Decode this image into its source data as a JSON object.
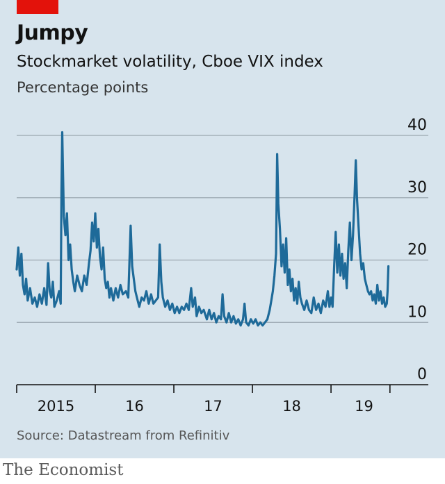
{
  "title": "Jumpy",
  "subtitle": "Stockmarket volatility, Cboe VIX index",
  "units": "Percentage points",
  "source": "Source: Datastream from Refinitiv",
  "brand": "The Economist",
  "colors": {
    "line": "#1e6a99",
    "accent_tag": "#e3120b",
    "background": "#d7e4ed"
  },
  "chart_data": {
    "type": "line",
    "ylim": [
      0,
      40
    ],
    "yticks": [
      0,
      10,
      20,
      30,
      40
    ],
    "xlim": [
      2014.58,
      2019.42
    ],
    "x_ticks": [
      2014.58,
      2015.58,
      2016.58,
      2017.58,
      2018.58,
      2019.33
    ],
    "x_labels": [
      {
        "x": 2015.08,
        "label": "2015"
      },
      {
        "x": 2016.08,
        "label": "16"
      },
      {
        "x": 2017.08,
        "label": "17"
      },
      {
        "x": 2018.08,
        "label": "18"
      },
      {
        "x": 2019.0,
        "label": "19"
      }
    ],
    "grid": true,
    "series": [
      {
        "values": [
          [
            2014.58,
            18.5
          ],
          [
            2014.6,
            22.0
          ],
          [
            2014.62,
            17.5
          ],
          [
            2014.64,
            21.0
          ],
          [
            2014.66,
            16.0
          ],
          [
            2014.68,
            14.5
          ],
          [
            2014.7,
            17.0
          ],
          [
            2014.72,
            13.5
          ],
          [
            2014.75,
            15.5
          ],
          [
            2014.78,
            13.0
          ],
          [
            2014.81,
            14.0
          ],
          [
            2014.84,
            12.5
          ],
          [
            2014.87,
            14.5
          ],
          [
            2014.9,
            13.0
          ],
          [
            2014.93,
            15.5
          ],
          [
            2014.96,
            12.8
          ],
          [
            2014.98,
            19.5
          ],
          [
            2015.0,
            15.0
          ],
          [
            2015.02,
            14.0
          ],
          [
            2015.04,
            16.5
          ],
          [
            2015.06,
            12.5
          ],
          [
            2015.09,
            13.5
          ],
          [
            2015.12,
            15.0
          ],
          [
            2015.14,
            13.0
          ],
          [
            2015.15,
            31.0
          ],
          [
            2015.16,
            40.5
          ],
          [
            2015.18,
            27.0
          ],
          [
            2015.2,
            24.0
          ],
          [
            2015.22,
            27.5
          ],
          [
            2015.24,
            20.0
          ],
          [
            2015.26,
            22.5
          ],
          [
            2015.28,
            18.5
          ],
          [
            2015.3,
            16.5
          ],
          [
            2015.32,
            15.0
          ],
          [
            2015.35,
            17.5
          ],
          [
            2015.38,
            16.0
          ],
          [
            2015.41,
            15.0
          ],
          [
            2015.44,
            17.5
          ],
          [
            2015.47,
            16.0
          ],
          [
            2015.5,
            19.5
          ],
          [
            2015.52,
            21.5
          ],
          [
            2015.54,
            26.0
          ],
          [
            2015.56,
            23.0
          ],
          [
            2015.58,
            27.5
          ],
          [
            2015.6,
            22.0
          ],
          [
            2015.62,
            25.0
          ],
          [
            2015.64,
            20.5
          ],
          [
            2015.66,
            18.5
          ],
          [
            2015.68,
            22.0
          ],
          [
            2015.7,
            17.0
          ],
          [
            2015.72,
            15.5
          ],
          [
            2015.74,
            16.5
          ],
          [
            2015.76,
            14.0
          ],
          [
            2015.78,
            15.5
          ],
          [
            2015.81,
            13.5
          ],
          [
            2015.84,
            15.5
          ],
          [
            2015.87,
            14.0
          ],
          [
            2015.9,
            16.0
          ],
          [
            2015.93,
            14.5
          ],
          [
            2015.97,
            15.0
          ],
          [
            2016.0,
            14.0
          ],
          [
            2016.03,
            25.5
          ],
          [
            2016.05,
            19.0
          ],
          [
            2016.07,
            17.0
          ],
          [
            2016.09,
            15.0
          ],
          [
            2016.11,
            14.0
          ],
          [
            2016.14,
            12.5
          ],
          [
            2016.17,
            14.0
          ],
          [
            2016.2,
            13.5
          ],
          [
            2016.23,
            15.0
          ],
          [
            2016.26,
            13.0
          ],
          [
            2016.29,
            14.5
          ],
          [
            2016.32,
            13.0
          ],
          [
            2016.35,
            13.5
          ],
          [
            2016.38,
            14.0
          ],
          [
            2016.4,
            22.5
          ],
          [
            2016.42,
            16.5
          ],
          [
            2016.44,
            14.0
          ],
          [
            2016.47,
            12.5
          ],
          [
            2016.5,
            13.5
          ],
          [
            2016.53,
            12.0
          ],
          [
            2016.56,
            13.0
          ],
          [
            2016.59,
            11.5
          ],
          [
            2016.62,
            12.5
          ],
          [
            2016.65,
            11.5
          ],
          [
            2016.68,
            12.5
          ],
          [
            2016.71,
            12.0
          ],
          [
            2016.74,
            13.0
          ],
          [
            2016.77,
            12.0
          ],
          [
            2016.8,
            15.5
          ],
          [
            2016.82,
            12.5
          ],
          [
            2016.85,
            14.0
          ],
          [
            2016.87,
            11.0
          ],
          [
            2016.9,
            12.5
          ],
          [
            2016.93,
            11.5
          ],
          [
            2016.96,
            12.0
          ],
          [
            2017.0,
            10.5
          ],
          [
            2017.03,
            12.0
          ],
          [
            2017.06,
            10.5
          ],
          [
            2017.09,
            11.5
          ],
          [
            2017.12,
            10.0
          ],
          [
            2017.15,
            11.0
          ],
          [
            2017.18,
            10.5
          ],
          [
            2017.2,
            14.5
          ],
          [
            2017.22,
            11.0
          ],
          [
            2017.25,
            10.0
          ],
          [
            2017.28,
            11.5
          ],
          [
            2017.31,
            10.0
          ],
          [
            2017.34,
            11.0
          ],
          [
            2017.37,
            9.8
          ],
          [
            2017.4,
            10.5
          ],
          [
            2017.43,
            9.5
          ],
          [
            2017.46,
            10.5
          ],
          [
            2017.48,
            13.0
          ],
          [
            2017.5,
            10.0
          ],
          [
            2017.53,
            9.5
          ],
          [
            2017.56,
            10.5
          ],
          [
            2017.59,
            9.8
          ],
          [
            2017.62,
            10.5
          ],
          [
            2017.65,
            9.5
          ],
          [
            2017.68,
            10.0
          ],
          [
            2017.71,
            9.5
          ],
          [
            2017.74,
            10.0
          ],
          [
            2017.77,
            10.5
          ],
          [
            2017.8,
            12.0
          ],
          [
            2017.82,
            13.5
          ],
          [
            2017.84,
            15.0
          ],
          [
            2017.86,
            17.5
          ],
          [
            2017.88,
            21.0
          ],
          [
            2017.895,
            37.0
          ],
          [
            2017.91,
            29.0
          ],
          [
            2017.93,
            25.0
          ],
          [
            2017.95,
            19.0
          ],
          [
            2017.97,
            22.5
          ],
          [
            2017.99,
            18.0
          ],
          [
            2018.01,
            23.5
          ],
          [
            2018.03,
            16.0
          ],
          [
            2018.05,
            18.5
          ],
          [
            2018.07,
            15.0
          ],
          [
            2018.09,
            17.0
          ],
          [
            2018.11,
            13.5
          ],
          [
            2018.13,
            15.5
          ],
          [
            2018.15,
            13.0
          ],
          [
            2018.17,
            16.5
          ],
          [
            2018.19,
            14.0
          ],
          [
            2018.21,
            13.0
          ],
          [
            2018.24,
            12.0
          ],
          [
            2018.27,
            13.5
          ],
          [
            2018.3,
            12.0
          ],
          [
            2018.33,
            11.5
          ],
          [
            2018.36,
            14.0
          ],
          [
            2018.39,
            12.0
          ],
          [
            2018.42,
            13.0
          ],
          [
            2018.45,
            11.5
          ],
          [
            2018.48,
            13.5
          ],
          [
            2018.51,
            12.5
          ],
          [
            2018.54,
            15.0
          ],
          [
            2018.56,
            12.5
          ],
          [
            2018.58,
            14.0
          ],
          [
            2018.6,
            12.5
          ],
          [
            2018.62,
            19.0
          ],
          [
            2018.64,
            24.5
          ],
          [
            2018.66,
            18.0
          ],
          [
            2018.68,
            22.5
          ],
          [
            2018.7,
            17.5
          ],
          [
            2018.72,
            21.0
          ],
          [
            2018.74,
            17.0
          ],
          [
            2018.76,
            19.5
          ],
          [
            2018.78,
            15.5
          ],
          [
            2018.8,
            21.5
          ],
          [
            2018.82,
            26.0
          ],
          [
            2018.84,
            20.0
          ],
          [
            2018.86,
            24.0
          ],
          [
            2018.88,
            30.5
          ],
          [
            2018.895,
            36.0
          ],
          [
            2018.91,
            30.0
          ],
          [
            2018.93,
            25.5
          ],
          [
            2018.95,
            21.0
          ],
          [
            2018.97,
            18.5
          ],
          [
            2018.99,
            19.5
          ],
          [
            2019.01,
            17.0
          ],
          [
            2019.03,
            16.0
          ],
          [
            2019.05,
            15.0
          ],
          [
            2019.07,
            14.5
          ],
          [
            2019.09,
            15.0
          ],
          [
            2019.11,
            13.5
          ],
          [
            2019.13,
            14.5
          ],
          [
            2019.15,
            13.0
          ],
          [
            2019.17,
            16.0
          ],
          [
            2019.19,
            13.5
          ],
          [
            2019.21,
            15.0
          ],
          [
            2019.23,
            13.0
          ],
          [
            2019.25,
            14.0
          ],
          [
            2019.27,
            12.5
          ],
          [
            2019.29,
            13.0
          ],
          [
            2019.3,
            15.0
          ],
          [
            2019.31,
            19.0
          ]
        ]
      }
    ]
  }
}
